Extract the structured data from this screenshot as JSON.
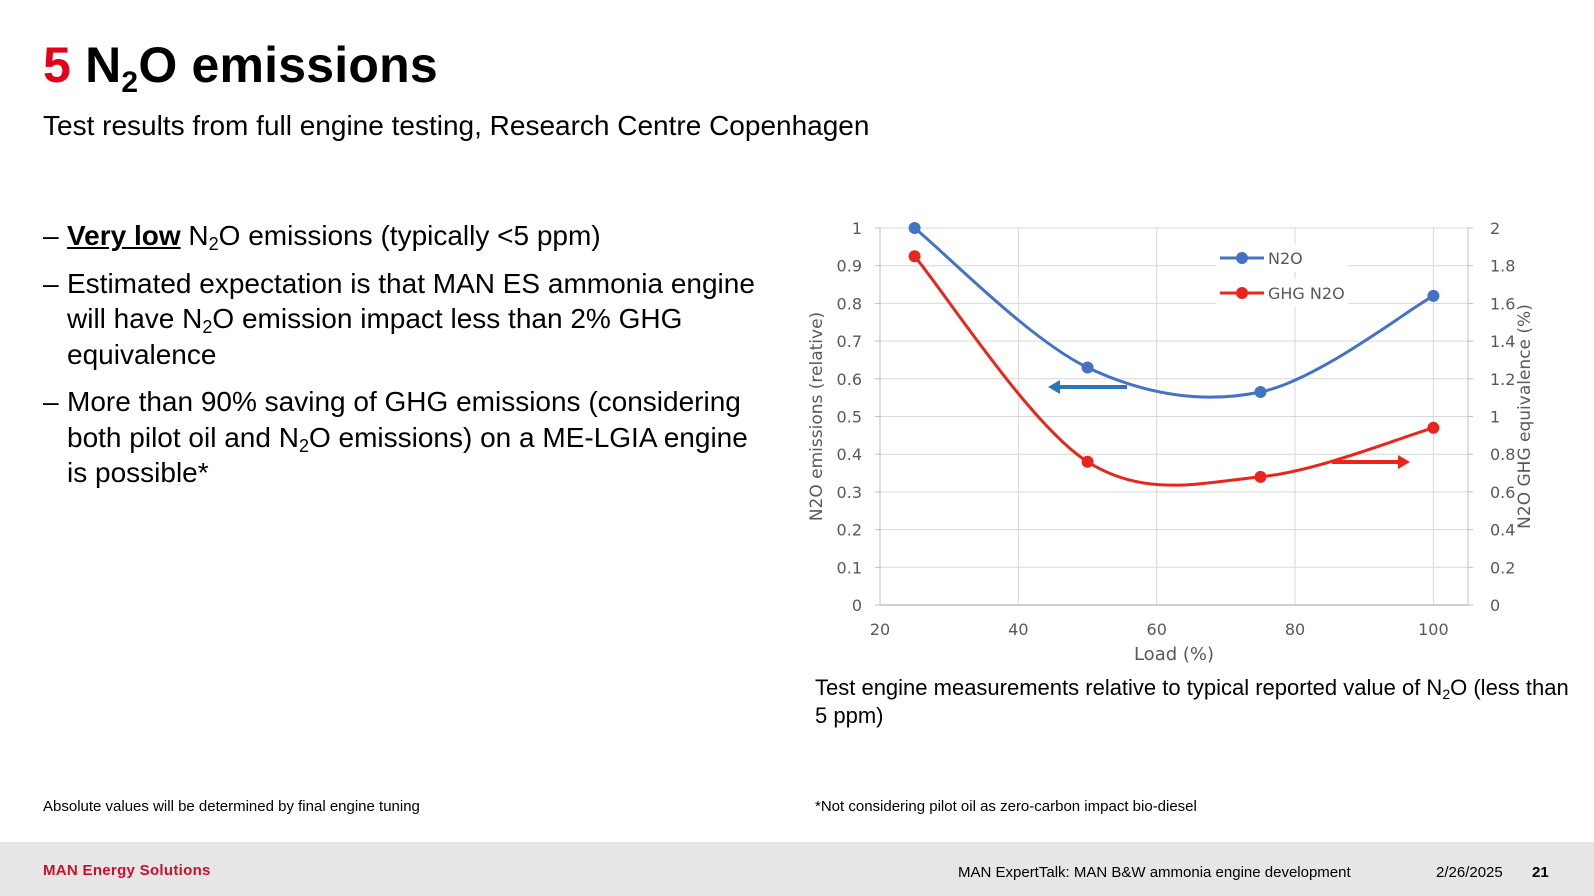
{
  "title": {
    "number": "5",
    "text_before": "N",
    "sub": "2",
    "text_after": "O emissions"
  },
  "subtitle": "Test results from full engine testing, Research Centre Copenhagen",
  "bullets": {
    "b1": {
      "emph": "Very low",
      "t1": " N",
      "sub": "2",
      "t2": "O emissions (typically <5 ppm)"
    },
    "b2": {
      "t1": "Estimated expectation is that MAN ES ammonia engine will have N",
      "sub": "2",
      "t2": "O emission impact less than 2% GHG equivalence"
    },
    "b3": {
      "t1": "More than 90% saving of GHG emissions (considering both pilot oil and N",
      "sub": "2",
      "t2": "O emissions) on a ME-LGIA engine is possible*"
    }
  },
  "caption": {
    "t1": "Test engine measurements relative to typical reported value of N",
    "sub": "2",
    "t2": "O (less than 5 ppm)"
  },
  "notes": {
    "left": "Absolute values will be determined by final engine tuning",
    "right": "*Not considering pilot oil as zero-carbon impact bio-diesel"
  },
  "footer": {
    "brand": "MAN Energy Solutions",
    "event": "MAN ExpertTalk: MAN B&W ammonia engine development",
    "date": "2/26/2025",
    "page": "21"
  },
  "chart_data": {
    "type": "line",
    "xlabel": "Load (%)",
    "ylabel": "N2O emissions (relative)",
    "y2label": "N2O GHG equivalence (%)",
    "xlim": [
      20,
      105
    ],
    "ylim": [
      0,
      1
    ],
    "y2lim": [
      0,
      2
    ],
    "xticks": [
      "20",
      "40",
      "60",
      "80",
      "100"
    ],
    "yticks": [
      "0",
      "0.1",
      "0.2",
      "0.3",
      "0.4",
      "0.5",
      "0.6",
      "0.7",
      "0.8",
      "0.9",
      "1"
    ],
    "y2ticks": [
      "0",
      "0.2",
      "0.4",
      "0.6",
      "0.8",
      "1",
      "1.2",
      "1.4",
      "1.6",
      "1.8",
      "2"
    ],
    "grid": true,
    "legend": "top-right",
    "series": [
      {
        "name": "N2O",
        "axis": "left",
        "color": "#4472c4",
        "x": [
          25,
          50,
          75,
          100
        ],
        "y": [
          1.0,
          0.63,
          0.565,
          0.82
        ]
      },
      {
        "name": "GHG N2O",
        "axis": "right",
        "color": "#e8261c",
        "x": [
          25,
          50,
          75,
          100
        ],
        "y": [
          1.85,
          0.76,
          0.68,
          0.94
        ]
      }
    ],
    "annotations": [
      {
        "type": "arrow",
        "direction": "left",
        "color": "#2e75b6",
        "meaning": "left axis"
      },
      {
        "type": "arrow",
        "direction": "right",
        "color": "#e8261c",
        "meaning": "right axis"
      }
    ]
  }
}
